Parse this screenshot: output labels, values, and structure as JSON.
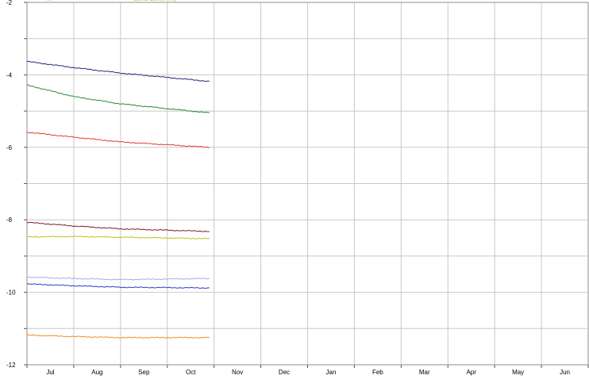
{
  "chart_data": {
    "type": "line",
    "title": "",
    "xlabel": "",
    "ylabel": "",
    "x_categories": [
      "Jul",
      "Aug",
      "Sep",
      "Oct",
      "Nov",
      "Dec",
      "Jan",
      "Feb",
      "Mar",
      "Apr",
      "May",
      "Jun"
    ],
    "ylim": [
      -12,
      -2
    ],
    "y_ticks": [
      -12,
      -10,
      -8,
      -6,
      -4,
      -2
    ],
    "grid": true,
    "legend_partial": [
      "...",
      "Sens Level (m)"
    ],
    "series": [
      {
        "color": "#1f2a80",
        "x": [
          0,
          1,
          2,
          3.9
        ],
        "y": [
          -3.63,
          -3.8,
          -3.95,
          -4.18
        ]
      },
      {
        "color": "#2a8a2a",
        "x": [
          0,
          1,
          2,
          3.9
        ],
        "y": [
          -4.28,
          -4.6,
          -4.8,
          -5.05
        ]
      },
      {
        "color": "#e23b2e",
        "x": [
          0,
          1,
          2,
          3.9
        ],
        "y": [
          -5.58,
          -5.72,
          -5.85,
          -6.0
        ]
      },
      {
        "color": "#7a1a2a",
        "x": [
          0,
          1,
          2,
          3.9
        ],
        "y": [
          -8.07,
          -8.17,
          -8.25,
          -8.32
        ]
      },
      {
        "color": "#b9c21a",
        "x": [
          0,
          1,
          2,
          3.9
        ],
        "y": [
          -8.47,
          -8.46,
          -8.48,
          -8.52
        ]
      },
      {
        "color": "#a8a8f0",
        "x": [
          0,
          1,
          2,
          3.9
        ],
        "y": [
          -9.58,
          -9.62,
          -9.65,
          -9.62
        ]
      },
      {
        "color": "#2a3ad0",
        "x": [
          0,
          1,
          2,
          3.9
        ],
        "y": [
          -9.77,
          -9.82,
          -9.86,
          -9.88
        ]
      },
      {
        "color": "#f08a2a",
        "x": [
          0,
          1,
          2,
          3.9
        ],
        "y": [
          -11.18,
          -11.22,
          -11.25,
          -11.25
        ]
      }
    ]
  }
}
